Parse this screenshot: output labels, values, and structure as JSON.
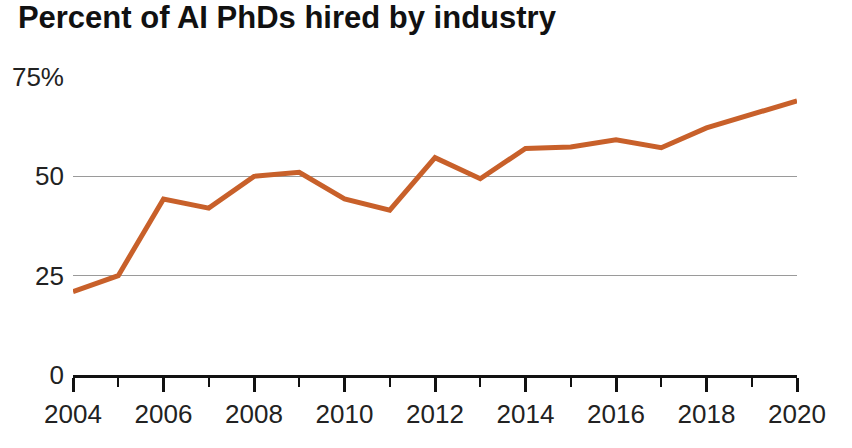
{
  "chart_data": {
    "type": "line",
    "title": "Percent of AI PhDs hired by industry",
    "x": [
      2004,
      2005,
      2006,
      2007,
      2008,
      2009,
      2010,
      2011,
      2012,
      2013,
      2014,
      2015,
      2016,
      2017,
      2018,
      2019,
      2020
    ],
    "values": [
      21,
      25,
      44.3,
      42,
      50,
      51,
      44.3,
      41.5,
      54.7,
      49.4,
      57,
      57.4,
      59.2,
      57.2,
      62.2,
      65.7,
      69
    ],
    "color": "#c8602a",
    "xlim": [
      2004,
      2020
    ],
    "xticks": [
      2004,
      2006,
      2008,
      2010,
      2012,
      2014,
      2016,
      2018,
      2020
    ],
    "ylim": [
      0,
      75
    ],
    "yticks": [
      0,
      25,
      50,
      {
        "value": 75,
        "label": "75%"
      }
    ],
    "grid": true
  }
}
